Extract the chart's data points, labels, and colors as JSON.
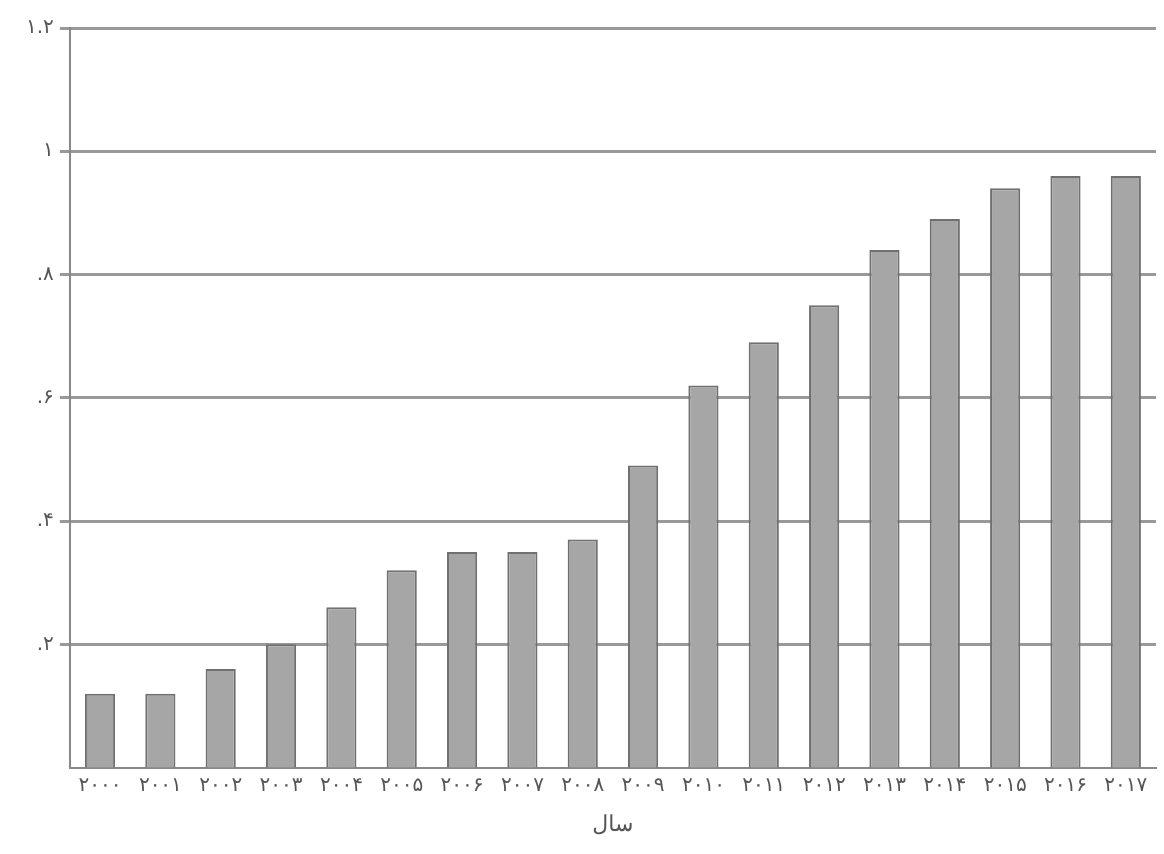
{
  "chart_data": {
    "type": "bar",
    "xlabel": "سال",
    "categories": [
      "۲۰۰۰",
      "۲۰۰۱",
      "۲۰۰۲",
      "۲۰۰۳",
      "۲۰۰۴",
      "۲۰۰۵",
      "۲۰۰۶",
      "۲۰۰۷",
      "۲۰۰۸",
      "۲۰۰۹",
      "۲۰۱۰",
      "۲۰۱۱",
      "۲۰۱۲",
      "۲۰۱۳",
      "۲۰۱۴",
      "۲۰۱۵",
      "۲۰۱۶",
      "۲۰۱۷"
    ],
    "values": [
      0.12,
      0.12,
      0.16,
      0.2,
      0.26,
      0.32,
      0.35,
      0.35,
      0.37,
      0.49,
      0.62,
      0.69,
      0.75,
      0.84,
      0.89,
      0.94,
      0.96,
      0.96
    ],
    "color": "#a6a6a6",
    "ylim": [
      0,
      1.2
    ],
    "yticks": [
      {
        "value": 0.2,
        "label": ".۲"
      },
      {
        "value": 0.4,
        "label": ".۴"
      },
      {
        "value": 0.6,
        "label": ".۶"
      },
      {
        "value": 0.8,
        "label": ".۸"
      },
      {
        "value": 1,
        "label": "۱"
      },
      {
        "value": 1.2,
        "label": "۱.۲"
      }
    ],
    "grid": "y",
    "legend": false
  }
}
